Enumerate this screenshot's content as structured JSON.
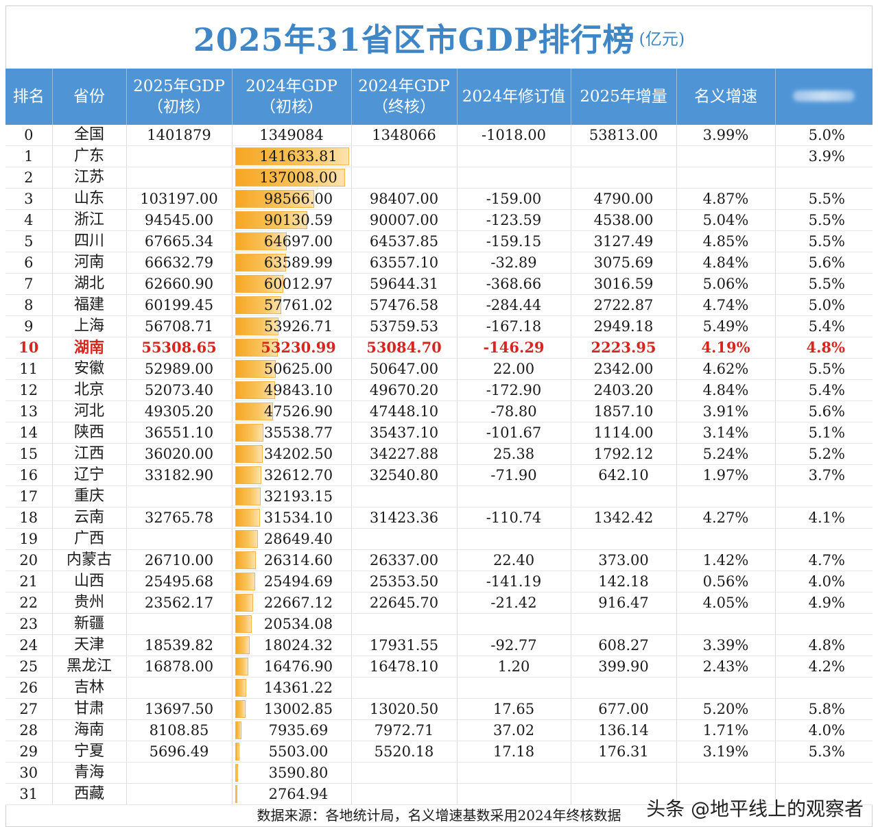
{
  "title": "2025年31省区市GDP排行榜",
  "title_unit": "(亿元)",
  "headers": {
    "rank": "排名",
    "province": "省份",
    "gdp2025_l1": "2025年GDP",
    "gdp2025_l2": "（初核）",
    "gdp2024p_l1": "2024年GDP",
    "gdp2024p_l2": "（初核）",
    "gdp2024f_l1": "2024年GDP",
    "gdp2024f_l2": "（终核）",
    "revision": "2024年修订值",
    "increment": "2025年增量",
    "nominal": "名义增速"
  },
  "rows": [
    {
      "rank": "0",
      "prov": "全国",
      "g25": "1401879",
      "g24p": "1349084",
      "g24f": "1348066",
      "rev": "-1018.00",
      "inc": "53813.00",
      "nom": "3.99%",
      "real": "5.0%"
    },
    {
      "rank": "1",
      "prov": "广东",
      "g25": "",
      "g24p": "141633.81",
      "g24f": "",
      "rev": "",
      "inc": "",
      "nom": "",
      "real": "3.9%"
    },
    {
      "rank": "2",
      "prov": "江苏",
      "g25": "",
      "g24p": "137008.00",
      "g24f": "",
      "rev": "",
      "inc": "",
      "nom": "",
      "real": ""
    },
    {
      "rank": "3",
      "prov": "山东",
      "g25": "103197.00",
      "g24p": "98566.00",
      "g24f": "98407.00",
      "rev": "-159.00",
      "inc": "4790.00",
      "nom": "4.87%",
      "real": "5.5%"
    },
    {
      "rank": "4",
      "prov": "浙江",
      "g25": "94545.00",
      "g24p": "90130.59",
      "g24f": "90007.00",
      "rev": "-123.59",
      "inc": "4538.00",
      "nom": "5.04%",
      "real": "5.5%"
    },
    {
      "rank": "5",
      "prov": "四川",
      "g25": "67665.34",
      "g24p": "64697.00",
      "g24f": "64537.85",
      "rev": "-159.15",
      "inc": "3127.49",
      "nom": "4.85%",
      "real": "5.5%"
    },
    {
      "rank": "6",
      "prov": "河南",
      "g25": "66632.79",
      "g24p": "63589.99",
      "g24f": "63557.10",
      "rev": "-32.89",
      "inc": "3075.69",
      "nom": "4.84%",
      "real": "5.6%"
    },
    {
      "rank": "7",
      "prov": "湖北",
      "g25": "62660.90",
      "g24p": "60012.97",
      "g24f": "59644.31",
      "rev": "-368.66",
      "inc": "3016.59",
      "nom": "5.06%",
      "real": "5.5%"
    },
    {
      "rank": "8",
      "prov": "福建",
      "g25": "60199.45",
      "g24p": "57761.02",
      "g24f": "57476.58",
      "rev": "-284.44",
      "inc": "2722.87",
      "nom": "4.74%",
      "real": "5.0%"
    },
    {
      "rank": "9",
      "prov": "上海",
      "g25": "56708.71",
      "g24p": "53926.71",
      "g24f": "53759.53",
      "rev": "-167.18",
      "inc": "2949.18",
      "nom": "5.49%",
      "real": "5.4%"
    },
    {
      "rank": "10",
      "prov": "湖南",
      "g25": "55308.65",
      "g24p": "53230.99",
      "g24f": "53084.70",
      "rev": "-146.29",
      "inc": "2223.95",
      "nom": "4.19%",
      "real": "4.8%",
      "hl": true
    },
    {
      "rank": "11",
      "prov": "安徽",
      "g25": "52989.00",
      "g24p": "50625.00",
      "g24f": "50647.00",
      "rev": "22.00",
      "inc": "2342.00",
      "nom": "4.62%",
      "real": "5.5%"
    },
    {
      "rank": "12",
      "prov": "北京",
      "g25": "52073.40",
      "g24p": "49843.10",
      "g24f": "49670.20",
      "rev": "-172.90",
      "inc": "2403.20",
      "nom": "4.84%",
      "real": "5.4%"
    },
    {
      "rank": "13",
      "prov": "河北",
      "g25": "49305.20",
      "g24p": "47526.90",
      "g24f": "47448.10",
      "rev": "-78.80",
      "inc": "1857.10",
      "nom": "3.91%",
      "real": "5.6%"
    },
    {
      "rank": "14",
      "prov": "陕西",
      "g25": "36551.10",
      "g24p": "35538.77",
      "g24f": "35437.10",
      "rev": "-101.67",
      "inc": "1114.00",
      "nom": "3.14%",
      "real": "5.1%"
    },
    {
      "rank": "15",
      "prov": "江西",
      "g25": "36020.00",
      "g24p": "34202.50",
      "g24f": "34227.88",
      "rev": "25.38",
      "inc": "1792.12",
      "nom": "5.24%",
      "real": "5.2%"
    },
    {
      "rank": "16",
      "prov": "辽宁",
      "g25": "33182.90",
      "g24p": "32612.70",
      "g24f": "32540.80",
      "rev": "-71.90",
      "inc": "642.10",
      "nom": "1.97%",
      "real": "3.7%"
    },
    {
      "rank": "17",
      "prov": "重庆",
      "g25": "",
      "g24p": "32193.15",
      "g24f": "",
      "rev": "",
      "inc": "",
      "nom": "",
      "real": ""
    },
    {
      "rank": "18",
      "prov": "云南",
      "g25": "32765.78",
      "g24p": "31534.10",
      "g24f": "31423.36",
      "rev": "-110.74",
      "inc": "1342.42",
      "nom": "4.27%",
      "real": "4.1%"
    },
    {
      "rank": "19",
      "prov": "广西",
      "g25": "",
      "g24p": "28649.40",
      "g24f": "",
      "rev": "",
      "inc": "",
      "nom": "",
      "real": ""
    },
    {
      "rank": "20",
      "prov": "内蒙古",
      "g25": "26710.00",
      "g24p": "26314.60",
      "g24f": "26337.00",
      "rev": "22.40",
      "inc": "373.00",
      "nom": "1.42%",
      "real": "4.7%"
    },
    {
      "rank": "21",
      "prov": "山西",
      "g25": "25495.68",
      "g24p": "25494.69",
      "g24f": "25353.50",
      "rev": "-141.19",
      "inc": "142.18",
      "nom": "0.56%",
      "real": "4.0%"
    },
    {
      "rank": "22",
      "prov": "贵州",
      "g25": "23562.17",
      "g24p": "22667.12",
      "g24f": "22645.70",
      "rev": "-21.42",
      "inc": "916.47",
      "nom": "4.05%",
      "real": "4.9%"
    },
    {
      "rank": "23",
      "prov": "新疆",
      "g25": "",
      "g24p": "20534.08",
      "g24f": "",
      "rev": "",
      "inc": "",
      "nom": "",
      "real": ""
    },
    {
      "rank": "24",
      "prov": "天津",
      "g25": "18539.82",
      "g24p": "18024.32",
      "g24f": "17931.55",
      "rev": "-92.77",
      "inc": "608.27",
      "nom": "3.39%",
      "real": "4.8%"
    },
    {
      "rank": "25",
      "prov": "黑龙江",
      "g25": "16878.00",
      "g24p": "16476.90",
      "g24f": "16478.10",
      "rev": "1.20",
      "inc": "399.90",
      "nom": "2.43%",
      "real": "4.2%"
    },
    {
      "rank": "26",
      "prov": "吉林",
      "g25": "",
      "g24p": "14361.22",
      "g24f": "",
      "rev": "",
      "inc": "",
      "nom": "",
      "real": ""
    },
    {
      "rank": "27",
      "prov": "甘肃",
      "g25": "13697.50",
      "g24p": "13002.85",
      "g24f": "13020.50",
      "rev": "17.65",
      "inc": "677.00",
      "nom": "5.20%",
      "real": "5.8%"
    },
    {
      "rank": "28",
      "prov": "海南",
      "g25": "8108.85",
      "g24p": "7935.69",
      "g24f": "7972.71",
      "rev": "37.02",
      "inc": "136.14",
      "nom": "1.71%",
      "real": "4.0%"
    },
    {
      "rank": "29",
      "prov": "宁夏",
      "g25": "5696.49",
      "g24p": "5503.00",
      "g24f": "5520.18",
      "rev": "17.18",
      "inc": "176.31",
      "nom": "3.19%",
      "real": "5.3%"
    },
    {
      "rank": "30",
      "prov": "青海",
      "g25": "",
      "g24p": "3590.80",
      "g24f": "",
      "rev": "",
      "inc": "",
      "nom": "",
      "real": ""
    },
    {
      "rank": "31",
      "prov": "西藏",
      "g25": "",
      "g24p": "2764.94",
      "g24f": "",
      "rev": "",
      "inc": "",
      "nom": "",
      "real": ""
    }
  ],
  "bar_scale_max": 141633.81,
  "footer": "数据来源：各地统计局，名义增速基数采用2024年终核数据",
  "watermark": "头条 @地平线上的观察者"
}
